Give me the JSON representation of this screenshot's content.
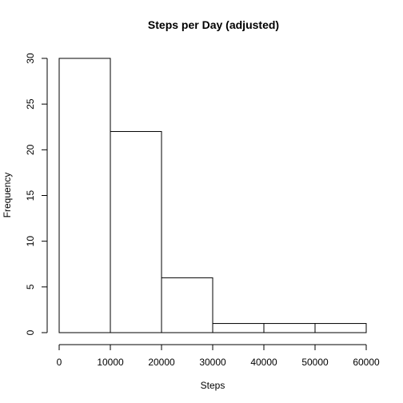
{
  "chart_data": {
    "type": "bar",
    "title": "Steps per Day (adjusted)",
    "xlabel": "Steps",
    "ylabel": "Frequency",
    "bins": [
      {
        "from": 0,
        "to": 10000,
        "value": 30
      },
      {
        "from": 10000,
        "to": 20000,
        "value": 22
      },
      {
        "from": 20000,
        "to": 30000,
        "value": 6
      },
      {
        "from": 30000,
        "to": 40000,
        "value": 1
      },
      {
        "from": 40000,
        "to": 50000,
        "value": 1
      },
      {
        "from": 50000,
        "to": 60000,
        "value": 1
      }
    ],
    "xlim": [
      0,
      60000
    ],
    "ylim": [
      0,
      30
    ],
    "xticks": [
      0,
      10000,
      20000,
      30000,
      40000,
      50000,
      60000
    ],
    "yticks": [
      0,
      5,
      10,
      15,
      20,
      25,
      30
    ],
    "grid": false,
    "legend": "none",
    "colors": {
      "bar_fill": "#ffffff",
      "bar_stroke": "#000000",
      "axis": "#000000"
    }
  }
}
